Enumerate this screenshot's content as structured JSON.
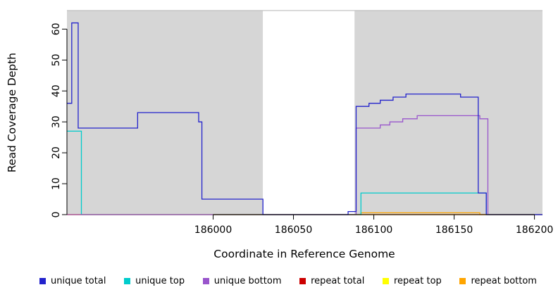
{
  "chart_data": {
    "type": "line",
    "step": true,
    "title": "",
    "xlabel": "Coordinate in Reference Genome",
    "ylabel": "Read Coverage Depth",
    "xlim": [
      185909,
      186205
    ],
    "ylim": [
      0,
      66
    ],
    "x_ticks": [
      186000,
      186050,
      186100,
      186150,
      186200
    ],
    "y_ticks": [
      0,
      10,
      20,
      30,
      40,
      50,
      60
    ],
    "grid": false,
    "legend_position": "bottom",
    "plot_bg_color": "#d6d6d6",
    "gap_region_color": "#ffffff",
    "background_regions": [
      {
        "from": 185909,
        "to": 186031,
        "color": "#d6d6d6"
      },
      {
        "from": 186031,
        "to": 186088,
        "color": "#ffffff"
      },
      {
        "from": 186088,
        "to": 186205,
        "color": "#d6d6d6"
      }
    ],
    "series": [
      {
        "name": "repeat top",
        "color": "#ffff00",
        "start": 0,
        "breaks": []
      },
      {
        "name": "repeat total",
        "color": "#cc0000",
        "start": 0,
        "breaks": []
      },
      {
        "name": "repeat bottom",
        "color": "#ffa500",
        "start": 0,
        "breaks": [
          [
            186092,
            0.6
          ],
          [
            186166,
            0
          ]
        ]
      },
      {
        "name": "unique top",
        "color": "#00cccc",
        "start": 27,
        "breaks": [
          [
            185918,
            0
          ],
          [
            186092,
            7
          ],
          [
            186170,
            0
          ]
        ]
      },
      {
        "name": "unique bottom",
        "color": "#9955cc",
        "start": 0,
        "breaks": [
          [
            186089,
            28
          ],
          [
            186104,
            29
          ],
          [
            186110,
            30
          ],
          [
            186118,
            31
          ],
          [
            186127,
            32
          ],
          [
            186166,
            31
          ],
          [
            186171,
            0
          ]
        ]
      },
      {
        "name": "unique total",
        "color": "#2222cc",
        "start": 36,
        "breaks": [
          [
            185912,
            62
          ],
          [
            185916,
            28
          ],
          [
            185953,
            33
          ],
          [
            185991,
            30
          ],
          [
            185993,
            5
          ],
          [
            186031,
            0
          ],
          [
            186084,
            1
          ],
          [
            186089,
            35
          ],
          [
            186097,
            36
          ],
          [
            186104,
            37
          ],
          [
            186112,
            38
          ],
          [
            186120,
            39
          ],
          [
            186154,
            38
          ],
          [
            186165,
            7
          ],
          [
            186170,
            0
          ]
        ]
      }
    ],
    "legend": [
      {
        "label": "unique total",
        "color": "#2222cc"
      },
      {
        "label": "unique top",
        "color": "#00cccc"
      },
      {
        "label": "unique bottom",
        "color": "#9955cc"
      },
      {
        "label": "repeat total",
        "color": "#cc0000"
      },
      {
        "label": "repeat top",
        "color": "#ffff00"
      },
      {
        "label": "repeat bottom",
        "color": "#ffa500"
      }
    ]
  }
}
